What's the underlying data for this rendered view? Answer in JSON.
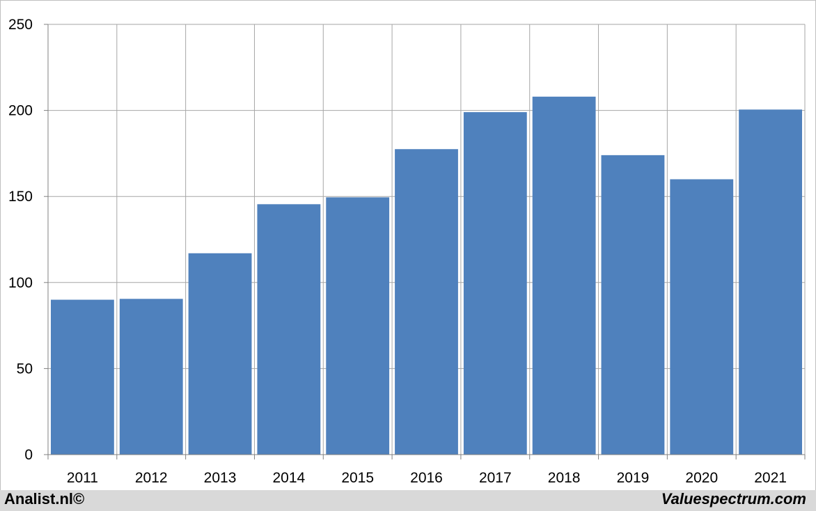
{
  "chart_data": {
    "type": "bar",
    "title": "",
    "xlabel": "",
    "ylabel": "",
    "categories": [
      "2011",
      "2012",
      "2013",
      "2014",
      "2015",
      "2016",
      "2017",
      "2018",
      "2019",
      "2020",
      "2021"
    ],
    "values": [
      90,
      90.5,
      117,
      145.5,
      149.5,
      177.5,
      199,
      208,
      174,
      160,
      200.5
    ],
    "ylim": [
      0,
      250
    ],
    "yticks": [
      0,
      50,
      100,
      150,
      200,
      250
    ],
    "grid": true,
    "bar_color": "#4f81bd",
    "grid_color": "#a6a6a6"
  },
  "footer": {
    "left": "Analist.nl©",
    "right": "Valuespectrum.com"
  }
}
